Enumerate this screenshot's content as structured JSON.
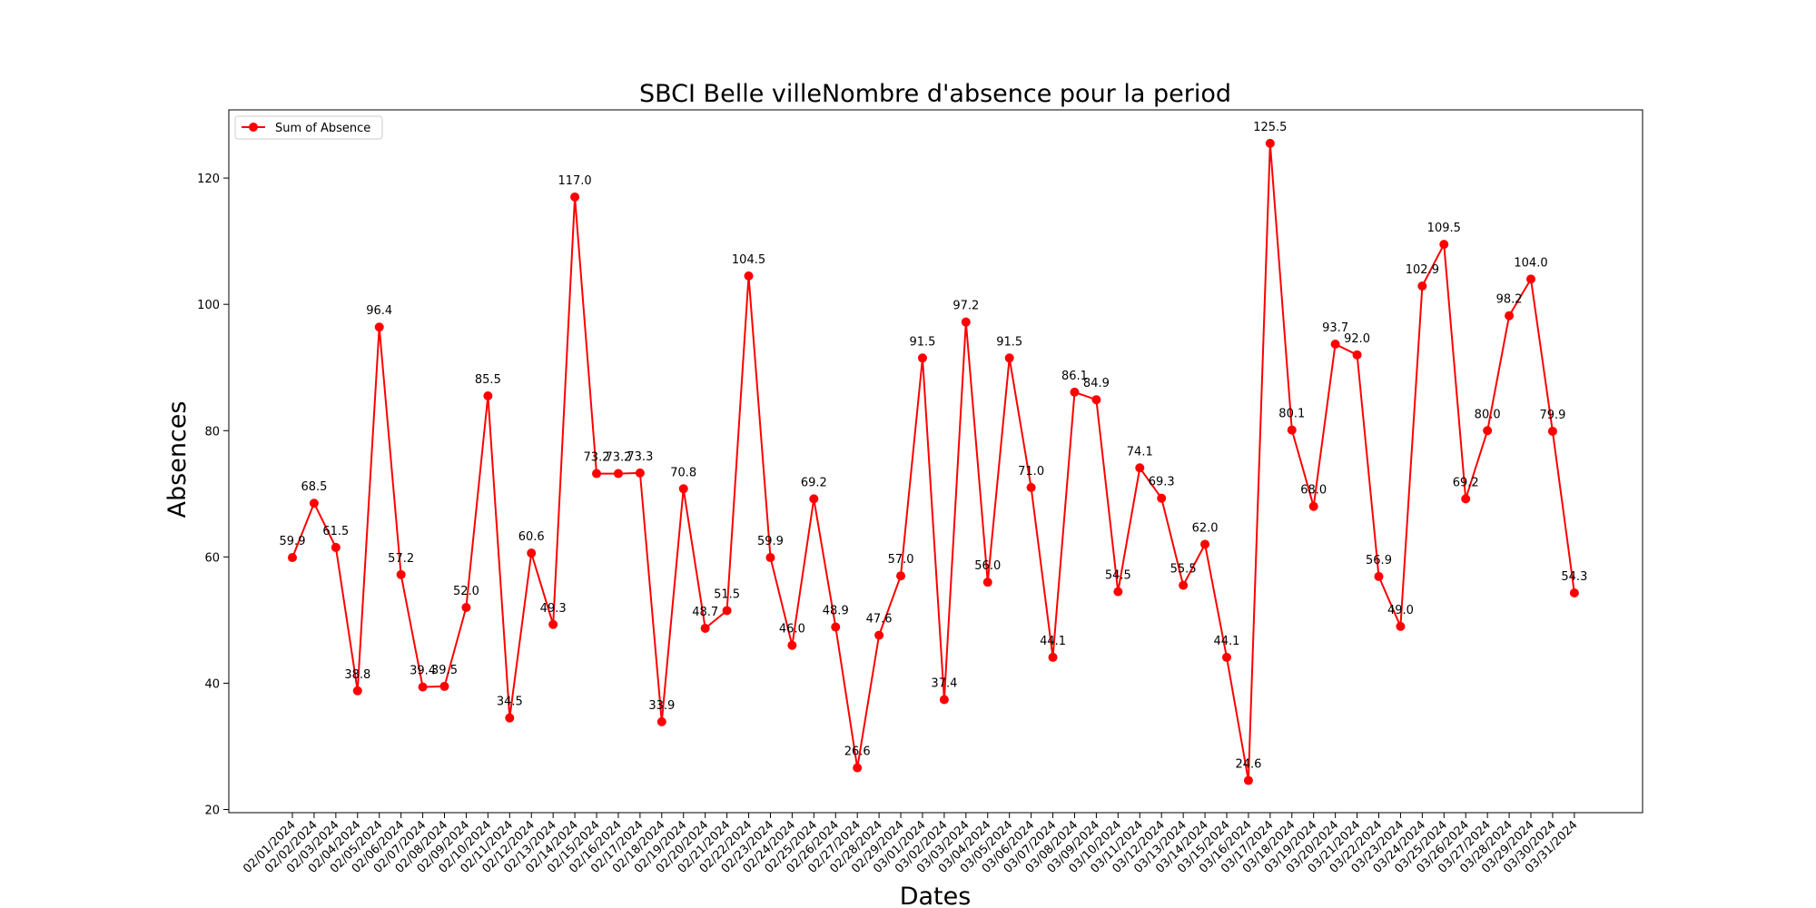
{
  "chart_data": {
    "type": "line",
    "title": "SBCI Belle villeNombre d'absence pour la period",
    "xlabel": "Dates",
    "ylabel": "Absences",
    "ylim": [
      19.5,
      130.8
    ],
    "yticks": [
      20,
      40,
      60,
      80,
      100,
      120
    ],
    "grid": false,
    "legend_position": "upper left",
    "categories": [
      "02/01/2024",
      "02/02/2024",
      "02/03/2024",
      "02/04/2024",
      "02/05/2024",
      "02/06/2024",
      "02/07/2024",
      "02/08/2024",
      "02/09/2024",
      "02/10/2024",
      "02/11/2024",
      "02/12/2024",
      "02/13/2024",
      "02/14/2024",
      "02/15/2024",
      "02/16/2024",
      "02/17/2024",
      "02/18/2024",
      "02/19/2024",
      "02/20/2024",
      "02/21/2024",
      "02/22/2024",
      "02/23/2024",
      "02/24/2024",
      "02/25/2024",
      "02/26/2024",
      "02/27/2024",
      "02/28/2024",
      "02/29/2024",
      "03/01/2024",
      "03/02/2024",
      "03/03/2024",
      "03/04/2024",
      "03/05/2024",
      "03/06/2024",
      "03/07/2024",
      "03/08/2024",
      "03/09/2024",
      "03/10/2024",
      "03/11/2024",
      "03/12/2024",
      "03/13/2024",
      "03/14/2024",
      "03/15/2024",
      "03/16/2024",
      "03/17/2024",
      "03/18/2024",
      "03/19/2024",
      "03/20/2024",
      "03/21/2024",
      "03/22/2024",
      "03/23/2024",
      "03/24/2024",
      "03/25/2024",
      "03/26/2024",
      "03/27/2024",
      "03/28/2024",
      "03/29/2024",
      "03/30/2024",
      "03/31/2024"
    ],
    "series": [
      {
        "name": "Sum of Absence",
        "color": "#ff0000",
        "marker": "circle",
        "values": [
          59.9,
          68.5,
          61.5,
          38.8,
          96.4,
          57.2,
          39.4,
          39.5,
          52.0,
          85.5,
          34.5,
          60.6,
          49.3,
          117.0,
          73.2,
          73.2,
          73.3,
          33.9,
          70.8,
          48.7,
          51.5,
          104.5,
          59.9,
          46.0,
          69.2,
          48.9,
          26.6,
          47.6,
          57.0,
          91.5,
          37.4,
          97.2,
          56.0,
          91.5,
          71.0,
          44.1,
          86.1,
          84.9,
          54.5,
          74.1,
          69.3,
          55.5,
          62.0,
          44.1,
          24.6,
          125.5,
          80.1,
          68.0,
          93.7,
          92.0,
          56.9,
          49.0,
          102.9,
          109.5,
          69.2,
          80.0,
          98.2,
          104.0,
          79.9,
          54.3
        ]
      }
    ]
  }
}
